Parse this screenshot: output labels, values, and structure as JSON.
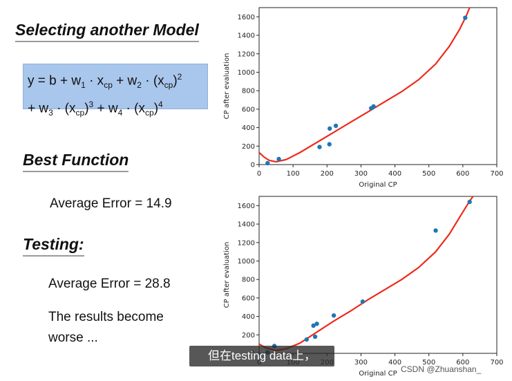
{
  "slide": {
    "title": "Selecting another Model",
    "formula_line1": "y = b + w1 · xcp + w2 · (xcp)2",
    "formula_line2": "+ w3 · (xcp)3 + w4 · (xcp)4",
    "best_function": "Best Function",
    "train_error": "Average Error = 14.9",
    "testing": "Testing:",
    "test_error": "Average Error = 28.8",
    "results_line1": "The results become",
    "results_line2": "worse ..."
  },
  "overlay": {
    "subtitle": "但在testing data上，",
    "watermark": "CSDN @Zhuanshan_"
  },
  "colors": {
    "points": "#1f77b4",
    "curve": "#ee2a1a",
    "formula_bg": "#a9c6ec"
  },
  "chart_data": [
    {
      "type": "scatter",
      "xlabel": "Original CP",
      "ylabel": "CP after evaluation",
      "xlim": [
        0,
        700
      ],
      "ylim": [
        0,
        1700
      ],
      "xticks": [
        0,
        100,
        200,
        300,
        400,
        500,
        600,
        700
      ],
      "yticks": [
        0,
        200,
        400,
        600,
        800,
        1000,
        1200,
        1400,
        1600
      ],
      "points": [
        [
          25,
          15
        ],
        [
          58,
          60
        ],
        [
          178,
          190
        ],
        [
          207,
          220
        ],
        [
          208,
          390
        ],
        [
          226,
          420
        ],
        [
          330,
          610
        ],
        [
          337,
          630
        ],
        [
          607,
          1590
        ]
      ],
      "curve": [
        [
          0,
          130
        ],
        [
          15,
          80
        ],
        [
          30,
          45
        ],
        [
          50,
          30
        ],
        [
          80,
          55
        ],
        [
          120,
          130
        ],
        [
          170,
          240
        ],
        [
          220,
          350
        ],
        [
          270,
          460
        ],
        [
          320,
          570
        ],
        [
          370,
          680
        ],
        [
          420,
          790
        ],
        [
          470,
          920
        ],
        [
          520,
          1090
        ],
        [
          560,
          1280
        ],
        [
          590,
          1460
        ],
        [
          610,
          1610
        ],
        [
          620,
          1700
        ]
      ]
    },
    {
      "type": "scatter",
      "xlabel": "Original CP",
      "ylabel": "CP after evaluation",
      "xlim": [
        0,
        700
      ],
      "ylim": [
        0,
        1700
      ],
      "xticks": [
        0,
        100,
        200,
        300,
        400,
        500,
        600,
        700
      ],
      "yticks": [
        0,
        200,
        400,
        600,
        800,
        1000,
        1200,
        1400,
        1600
      ],
      "points": [
        [
          25,
          10
        ],
        [
          45,
          80
        ],
        [
          140,
          150
        ],
        [
          160,
          300
        ],
        [
          170,
          320
        ],
        [
          220,
          410
        ],
        [
          165,
          180
        ],
        [
          305,
          560
        ],
        [
          520,
          1330
        ],
        [
          620,
          1640
        ]
      ],
      "curve": [
        [
          0,
          100
        ],
        [
          20,
          60
        ],
        [
          50,
          30
        ],
        [
          80,
          50
        ],
        [
          120,
          110
        ],
        [
          170,
          230
        ],
        [
          220,
          350
        ],
        [
          270,
          460
        ],
        [
          320,
          580
        ],
        [
          370,
          690
        ],
        [
          420,
          800
        ],
        [
          470,
          930
        ],
        [
          520,
          1100
        ],
        [
          560,
          1290
        ],
        [
          590,
          1470
        ],
        [
          620,
          1650
        ],
        [
          630,
          1700
        ]
      ]
    }
  ]
}
